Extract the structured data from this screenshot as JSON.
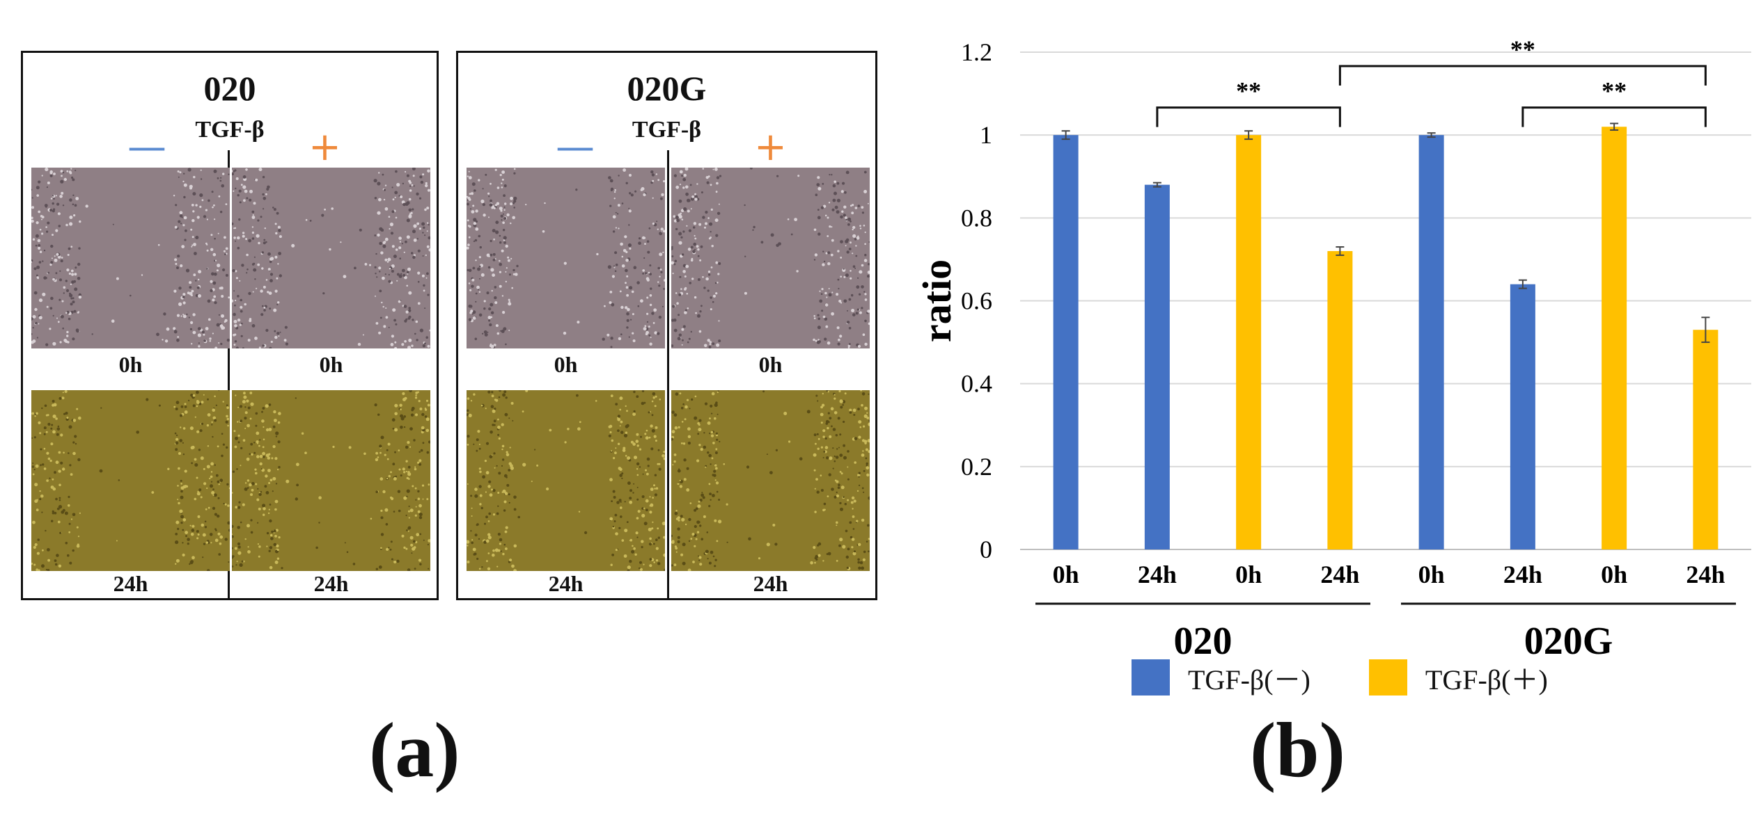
{
  "panel_a": {
    "label": "(a)",
    "groups": [
      {
        "title": "020",
        "treatment_label": "TGF-β",
        "minus_sign": "—",
        "plus_sign": "+",
        "time_labels": {
          "top_left": "0h",
          "top_right": "0h",
          "bottom_left": "24h",
          "bottom_right": "24h"
        }
      },
      {
        "title": "020G",
        "treatment_label": "TGF-β",
        "minus_sign": "—",
        "plus_sign": "+",
        "time_labels": {
          "top_left": "0h",
          "top_right": "0h",
          "bottom_left": "24h",
          "bottom_right": "24h"
        }
      }
    ]
  },
  "panel_b": {
    "label": "(b)"
  },
  "colors": {
    "series_minus": "#4472c4",
    "series_plus": "#ffc000",
    "grid": "#d9d9d9",
    "image_0h": "#8f7f85",
    "image_24h": "#8b7a2a"
  },
  "chart_data": {
    "type": "bar",
    "title": "",
    "xlabel": "",
    "ylabel": "ratio",
    "ylim": [
      0,
      1.2
    ],
    "yticks": [
      "0",
      "0.2",
      "0.4",
      "0.6",
      "0.8",
      "1",
      "1.2"
    ],
    "categories": [
      "0h",
      "24h",
      "0h",
      "24h",
      "0h",
      "24h",
      "0h",
      "24h"
    ],
    "groups": [
      "020",
      "020G"
    ],
    "legend": [
      "TGF-β(－)",
      "TGF-β(＋)"
    ],
    "bars": [
      {
        "group": "020",
        "category": "0h",
        "series": "TGF-β(－)",
        "value": 1.0,
        "error": 0.01
      },
      {
        "group": "020",
        "category": "24h",
        "series": "TGF-β(－)",
        "value": 0.88,
        "error": 0.005
      },
      {
        "group": "020",
        "category": "0h",
        "series": "TGF-β(＋)",
        "value": 1.0,
        "error": 0.01
      },
      {
        "group": "020",
        "category": "24h",
        "series": "TGF-β(＋)",
        "value": 0.72,
        "error": 0.01
      },
      {
        "group": "020G",
        "category": "0h",
        "series": "TGF-β(－)",
        "value": 1.0,
        "error": 0.005
      },
      {
        "group": "020G",
        "category": "24h",
        "series": "TGF-β(－)",
        "value": 0.64,
        "error": 0.01
      },
      {
        "group": "020G",
        "category": "0h",
        "series": "TGF-β(＋)",
        "value": 1.02,
        "error": 0.008
      },
      {
        "group": "020G",
        "category": "24h",
        "series": "TGF-β(＋)",
        "value": 0.53,
        "error": 0.03
      }
    ],
    "significance": [
      {
        "from_bar": 1,
        "to_bar": 3,
        "label": "**",
        "level": 1.1
      },
      {
        "from_bar": 5,
        "to_bar": 7,
        "label": "**",
        "level": 1.1
      },
      {
        "from_bar": 3,
        "to_bar": 7,
        "label": "**",
        "level": 1.2
      }
    ]
  }
}
